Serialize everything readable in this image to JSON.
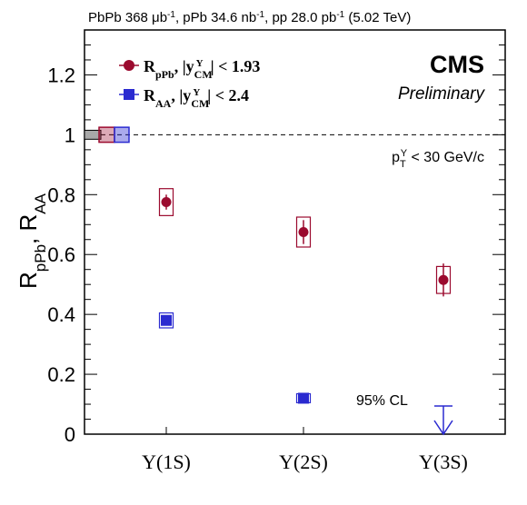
{
  "header": {
    "lumi_line": "PbPb 368 μb-1, pPb 34.6 nb-1, pp 28.0 pb-1 (5.02 TeV)"
  },
  "labels": {
    "cms": "CMS",
    "preliminary": "Preliminary",
    "pt_cut": "pT < 30 GeV/c",
    "cl": "95% CL",
    "legend_ppb": "RpPb, |yCM| < 1.93",
    "legend_aa": "RAA, |yCM| < 2.4"
  },
  "chart_data": {
    "type": "scatter",
    "title": "",
    "ylabel": "RpPb, RAA",
    "xlabel": "",
    "categories": [
      "Υ(1S)",
      "Υ(2S)",
      "Υ(3S)"
    ],
    "ylim": [
      0,
      1.35
    ],
    "yticks": [
      0,
      0.2,
      0.4,
      0.6,
      0.8,
      1,
      1.2
    ],
    "reference_line": 1,
    "series": [
      {
        "name": "RpPb, |yCM| < 1.93",
        "color": "#9b0a2e",
        "marker": "circle",
        "values": [
          0.775,
          0.675,
          0.515
        ],
        "stat_err": [
          0.025,
          0.04,
          0.055
        ],
        "syst_err": [
          0.045,
          0.05,
          0.045
        ]
      },
      {
        "name": "RAA, |yCM| < 2.4",
        "color": "#2a2ad0",
        "marker": "square",
        "values": [
          0.38,
          0.12,
          null
        ],
        "stat_err": [
          0.012,
          0.01,
          null
        ],
        "syst_err": [
          0.025,
          0.015,
          null
        ],
        "upper_limit": [
          null,
          null,
          0.094
        ]
      }
    ],
    "global_uncertainty": {
      "ppb_box": [
        0.975,
        1.025
      ],
      "aa_box": [
        0.975,
        1.025
      ],
      "gray_box": [
        0.985,
        1.015
      ]
    }
  }
}
